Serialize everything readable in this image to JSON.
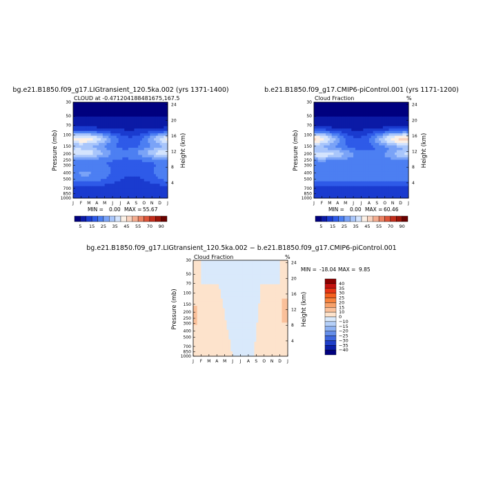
{
  "chart_data": [
    {
      "type": "heatmap",
      "title": "bg.e21.B1850.f09_g17.LIGtransient_120.5ka.002 (yrs 1371-1400)",
      "subtitle": "CLOUD at -0.471204188481675,167.5",
      "xlabel": "",
      "ylabel": "Pressure (mb)",
      "ylabel_right": "Height (km)",
      "x_ticks": [
        "J",
        "F",
        "M",
        "A",
        "M",
        "J",
        "J",
        "A",
        "S",
        "O",
        "N",
        "D",
        "J"
      ],
      "y_ticks": [
        "30",
        "50",
        "70",
        "100",
        "150",
        "200",
        "250",
        "300",
        "400",
        "500",
        "700",
        "850",
        "1000"
      ],
      "y_ticks_right": [
        "24",
        "20",
        "16",
        "12",
        "8",
        "4"
      ],
      "min_label": "MIN =",
      "min_value": "0.00",
      "max_label": "MAX =",
      "max_value": "55.67",
      "colorbar_labels": [
        "5",
        "15",
        "25",
        "35",
        "45",
        "55",
        "70",
        "90"
      ],
      "colorbar_levels": [
        5,
        10,
        15,
        20,
        25,
        30,
        35,
        40,
        45,
        50,
        55,
        60,
        70,
        80,
        90
      ],
      "colors": [
        "#00007f",
        "#0b1aa6",
        "#1a3bcf",
        "#2e5ae8",
        "#4c7ff2",
        "#7aa3f7",
        "#a9c6fb",
        "#d4e4fd",
        "#fbf0e6",
        "#f9d3bf",
        "#f4ad90",
        "#ec8162",
        "#dd553a",
        "#c22e1c",
        "#9a1409",
        "#6a0100"
      ]
    },
    {
      "type": "heatmap",
      "title": "b.e21.B1850.f09_g17.CMIP6-piControl.001 (yrs 1171-1200)",
      "subtitle": "Cloud Fraction",
      "subtitle_right": "%",
      "xlabel": "",
      "ylabel": "Pressure (mb)",
      "ylabel_right": "Height (km)",
      "x_ticks": [
        "J",
        "F",
        "M",
        "A",
        "M",
        "J",
        "J",
        "A",
        "S",
        "O",
        "N",
        "D",
        "J"
      ],
      "y_ticks": [
        "30",
        "50",
        "70",
        "100",
        "150",
        "200",
        "250",
        "300",
        "400",
        "500",
        "700",
        "850",
        "1000"
      ],
      "y_ticks_right": [
        "24",
        "20",
        "16",
        "12",
        "8",
        "4"
      ],
      "min_label": "MIN =",
      "min_value": "0.00",
      "max_label": "MAX =",
      "max_value": "60.46",
      "colorbar_labels": [
        "5",
        "15",
        "25",
        "35",
        "45",
        "55",
        "70",
        "90"
      ]
    },
    {
      "type": "heatmap",
      "title": "bg.e21.B1850.f09_g17.LIGtransient_120.5ka.002 − b.e21.B1850.f09_g17.CMIP6-piControl.001",
      "subtitle": "Cloud Fraction",
      "subtitle_right": "%",
      "xlabel": "",
      "ylabel": "Pressure (mb)",
      "ylabel_right": "Height (km)",
      "x_ticks": [
        "J",
        "F",
        "M",
        "A",
        "M",
        "J",
        "J",
        "A",
        "S",
        "O",
        "N",
        "D",
        "J"
      ],
      "y_ticks": [
        "30",
        "50",
        "70",
        "100",
        "150",
        "200",
        "250",
        "300",
        "400",
        "500",
        "700",
        "850",
        "1000"
      ],
      "y_ticks_right": [
        "24",
        "20",
        "16",
        "12",
        "8",
        "4"
      ],
      "min_label": "MIN =",
      "min_value": "-18.04",
      "max_label": "MAX =",
      "max_value": "9.85",
      "colorbar_labels": [
        "40",
        "35",
        "30",
        "25",
        "20",
        "15",
        "10",
        "0",
        "−10",
        "−15",
        "−20",
        "−25",
        "−30",
        "−35",
        "−40"
      ],
      "colorbar_levels": [
        -40,
        -35,
        -30,
        -25,
        -20,
        -15,
        -10,
        0,
        10,
        15,
        20,
        25,
        30,
        35,
        40
      ],
      "colors": [
        "#8b0000",
        "#c4120f",
        "#e63414",
        "#f5601e",
        "#f7823d",
        "#f7a16a",
        "#fac09a",
        "#fde3cc",
        "#d9e9fb",
        "#b4cff8",
        "#8eb2f2",
        "#658ee9",
        "#3e67de",
        "#1f3fc9",
        "#0a1fa8",
        "#00007f"
      ]
    }
  ]
}
